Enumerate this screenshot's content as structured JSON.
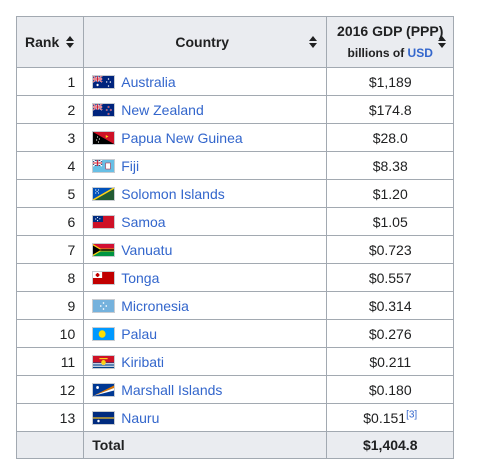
{
  "table": {
    "headers": {
      "rank": "Rank",
      "country": "Country",
      "gdp_line1": "2016 GDP (PPP)",
      "gdp_line2_prefix": "billions of ",
      "gdp_line2_link": "USD"
    },
    "rows": [
      {
        "rank": "1",
        "country": "Australia",
        "gdp": "$1,189",
        "flag": "australia-flag-icon",
        "ref": ""
      },
      {
        "rank": "2",
        "country": "New Zealand",
        "gdp": "$174.8",
        "flag": "new-zealand-flag-icon",
        "ref": ""
      },
      {
        "rank": "3",
        "country": "Papua New Guinea",
        "gdp": "$28.0",
        "flag": "papua-new-guinea-flag-icon",
        "ref": ""
      },
      {
        "rank": "4",
        "country": "Fiji",
        "gdp": "$8.38",
        "flag": "fiji-flag-icon",
        "ref": ""
      },
      {
        "rank": "5",
        "country": "Solomon Islands",
        "gdp": "$1.20",
        "flag": "solomon-islands-flag-icon",
        "ref": ""
      },
      {
        "rank": "6",
        "country": "Samoa",
        "gdp": "$1.05",
        "flag": "samoa-flag-icon",
        "ref": ""
      },
      {
        "rank": "7",
        "country": "Vanuatu",
        "gdp": "$0.723",
        "flag": "vanuatu-flag-icon",
        "ref": ""
      },
      {
        "rank": "8",
        "country": "Tonga",
        "gdp": "$0.557",
        "flag": "tonga-flag-icon",
        "ref": ""
      },
      {
        "rank": "9",
        "country": "Micronesia",
        "gdp": "$0.314",
        "flag": "micronesia-flag-icon",
        "ref": ""
      },
      {
        "rank": "10",
        "country": "Palau",
        "gdp": "$0.276",
        "flag": "palau-flag-icon",
        "ref": ""
      },
      {
        "rank": "11",
        "country": "Kiribati",
        "gdp": "$0.211",
        "flag": "kiribati-flag-icon",
        "ref": ""
      },
      {
        "rank": "12",
        "country": "Marshall Islands",
        "gdp": "$0.180",
        "flag": "marshall-islands-flag-icon",
        "ref": ""
      },
      {
        "rank": "13",
        "country": "Nauru",
        "gdp": "$0.151",
        "flag": "nauru-flag-icon",
        "ref": "[3]"
      }
    ],
    "footer": {
      "label": "Total",
      "value": "$1,404.8"
    }
  },
  "colors": {
    "link": "#3366cc",
    "header_bg": "#eaecf0",
    "border": "#a2a9b1"
  },
  "icons": {
    "sort": "sort-arrows-icon"
  }
}
